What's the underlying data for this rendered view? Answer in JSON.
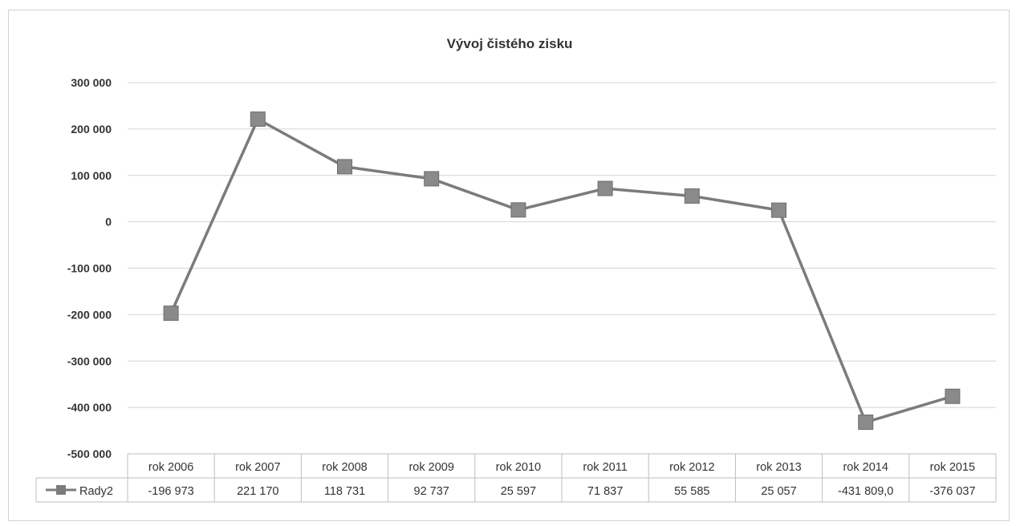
{
  "chart_data": {
    "type": "line",
    "title": "Vývoj  čistého zisku",
    "xlabel": "",
    "ylabel": "",
    "categories": [
      "rok 2006",
      "rok 2007",
      "rok 2008",
      "rok 2009",
      "rok 2010",
      "rok 2011",
      "rok 2012",
      "rok 2013",
      "rok 2014",
      "rok 2015"
    ],
    "series": [
      {
        "name": "Rady2",
        "values": [
          -196973,
          221170,
          118731,
          92737,
          25597,
          71837,
          55585,
          25057,
          -431809,
          -376037
        ],
        "value_labels": [
          "-196 973",
          "221 170",
          "118 731",
          "92 737",
          "25 597",
          "71 837",
          "55 585",
          "25 057",
          "-431 809,0",
          "-376 037"
        ],
        "color": "#7b7b7b"
      }
    ],
    "ylim": [
      -500000,
      300000
    ],
    "yticks": [
      300000,
      200000,
      100000,
      0,
      -100000,
      -200000,
      -300000,
      -400000,
      -500000
    ],
    "ytick_labels": [
      "300 000",
      "200 000",
      "100 000",
      "0",
      "-100 000",
      "-200 000",
      "-300 000",
      "-400 000",
      "-500 000"
    ],
    "grid": true,
    "legend": "data-table",
    "data_table": true
  }
}
